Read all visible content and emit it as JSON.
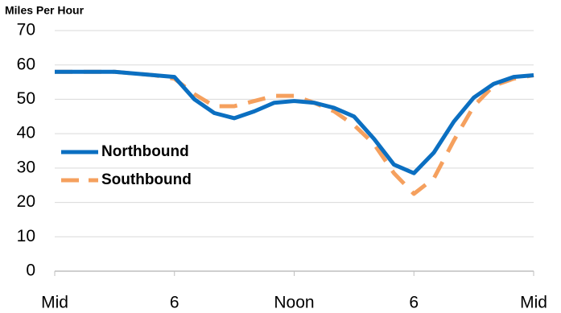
{
  "chart_data": {
    "type": "line",
    "title": "Miles Per Hour",
    "x": [
      0,
      1,
      2,
      3,
      4,
      5,
      6,
      7,
      8,
      9,
      10,
      11,
      12,
      13,
      14,
      15,
      16,
      17,
      18,
      19,
      20,
      21,
      22,
      23,
      24
    ],
    "xlim": [
      0,
      24
    ],
    "xticks": [
      {
        "value": 0,
        "label": "Mid"
      },
      6,
      {
        "value": 12,
        "label": "Noon"
      },
      {
        "value": 18,
        "label": "6"
      },
      {
        "value": 24,
        "label": "Mid"
      }
    ],
    "ylim": [
      0,
      70
    ],
    "yticks": [
      0,
      10,
      20,
      30,
      40,
      50,
      60,
      70
    ],
    "grid": true,
    "legend": "left",
    "series": [
      {
        "name": "Northbound",
        "color": "#0b6fc1",
        "dash": false,
        "values": [
          58,
          58,
          58,
          58,
          57.5,
          57,
          56.5,
          50,
          46,
          44.5,
          46.5,
          49,
          49.5,
          49,
          47.5,
          45,
          38.5,
          31,
          28.5,
          34.5,
          43.5,
          50.5,
          54.5,
          56.5,
          57
        ]
      },
      {
        "name": "Southbound",
        "color": "#f5a05e",
        "dash": true,
        "values": [
          58,
          58,
          58,
          58,
          57.5,
          57,
          56,
          51.5,
          48,
          48,
          49.5,
          51,
          51,
          49,
          46.5,
          42.5,
          37,
          28.5,
          22.5,
          27,
          38,
          48,
          54,
          56,
          57
        ]
      }
    ]
  }
}
